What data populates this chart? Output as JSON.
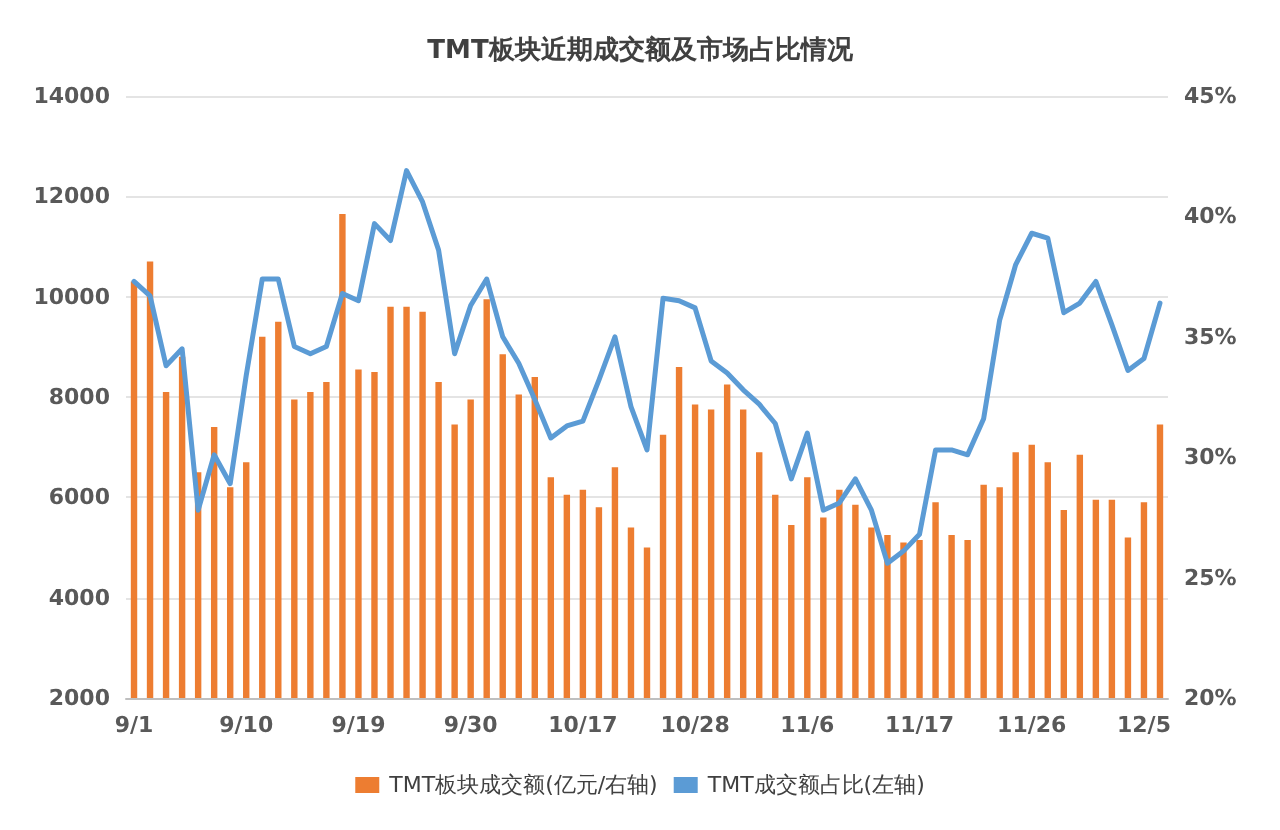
{
  "chart_data": {
    "type": "bar",
    "title": "TMT板块近期成交额及市场占比情况",
    "categories": [
      "9/1",
      null,
      null,
      null,
      null,
      null,
      null,
      "9/10",
      null,
      null,
      null,
      null,
      null,
      null,
      "9/19",
      null,
      null,
      null,
      null,
      null,
      null,
      "9/30",
      null,
      null,
      null,
      null,
      null,
      null,
      "10/17",
      null,
      null,
      null,
      null,
      null,
      null,
      "10/28",
      null,
      null,
      null,
      null,
      null,
      null,
      "11/6",
      null,
      null,
      null,
      null,
      null,
      null,
      "11/17",
      null,
      null,
      null,
      null,
      null,
      null,
      "11/26",
      null,
      null,
      null,
      null,
      null,
      null,
      "12/5",
      null
    ],
    "series": [
      {
        "name": "TMT板块成交额(亿元/右轴)",
        "color": "#ed7d31",
        "values": [
          10300,
          10700,
          8100,
          8800,
          6500,
          7400,
          6200,
          6700,
          9200,
          9500,
          7950,
          8100,
          8300,
          11650,
          8550,
          8500,
          9800,
          9800,
          9700,
          8300,
          7450,
          7950,
          9950,
          8850,
          8050,
          8400,
          6400,
          6050,
          6150,
          5800,
          6600,
          5400,
          5000,
          7250,
          8600,
          7850,
          7750,
          8250,
          7750,
          6900,
          6050,
          5450,
          6400,
          5600,
          6150,
          5850,
          5400,
          5250,
          5100,
          5150,
          5900,
          5250,
          5150,
          6250,
          6200,
          6900,
          7050,
          6700,
          5750,
          6850,
          5950,
          5950,
          5200,
          5900,
          7450
        ]
      },
      {
        "name": "TMT成交额占比(左轴)",
        "type": "line",
        "axis": "y2",
        "color": "#5b9bd5",
        "values": [
          37.3,
          36.7,
          33.8,
          34.5,
          27.8,
          30.1,
          28.9,
          33.4,
          37.4,
          37.4,
          34.6,
          34.3,
          34.6,
          36.8,
          36.5,
          39.7,
          39.0,
          41.9,
          40.6,
          38.6,
          34.3,
          36.3,
          37.4,
          35.0,
          33.9,
          32.4,
          30.8,
          31.3,
          31.5,
          33.2,
          35.0,
          32.1,
          30.3,
          36.6,
          36.5,
          36.2,
          34.0,
          33.5,
          32.8,
          32.2,
          31.4,
          29.1,
          31.0,
          27.8,
          28.1,
          29.1,
          27.8,
          25.6,
          26.1,
          26.8,
          30.3,
          30.3,
          30.1,
          31.6,
          35.7,
          38.0,
          39.3,
          39.1,
          36.0,
          36.4,
          37.3,
          35.5,
          33.6,
          34.1,
          36.4
        ]
      }
    ],
    "ylim": [
      2000,
      14000
    ],
    "yticks": [
      2000,
      4000,
      6000,
      8000,
      10000,
      12000,
      14000
    ],
    "y2lim": [
      20,
      45
    ],
    "y2ticks": [
      {
        "value": 20,
        "label": "20%"
      },
      {
        "value": 25,
        "label": "25%"
      },
      {
        "value": 30,
        "label": "30%"
      },
      {
        "value": 35,
        "label": "35%"
      },
      {
        "value": 40,
        "label": "40%"
      },
      {
        "value": 45,
        "label": "45%"
      }
    ],
    "grid": "y",
    "legend": "bottom",
    "marker": "none",
    "line_style": "solid"
  }
}
